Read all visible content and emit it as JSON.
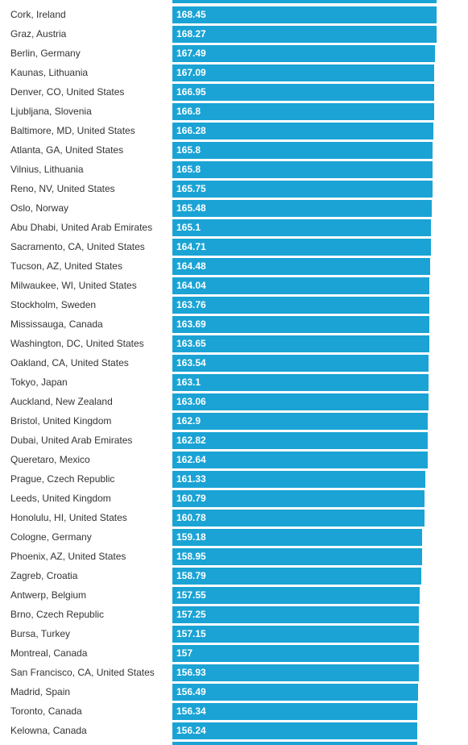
{
  "chart_data": {
    "type": "bar",
    "orientation": "horizontal",
    "title": "",
    "xlabel": "",
    "ylabel": "",
    "bar_color": "#1aa3d4",
    "xlim": [
      0,
      168.45
    ],
    "categories": [
      "Cork, Ireland",
      "Graz, Austria",
      "Berlin, Germany",
      "Kaunas, Lithuania",
      "Denver, CO, United States",
      "Ljubljana, Slovenia",
      "Baltimore, MD, United States",
      "Atlanta, GA, United States",
      "Vilnius, Lithuania",
      "Reno, NV, United States",
      "Oslo, Norway",
      "Abu Dhabi, United Arab Emirates",
      "Sacramento, CA, United States",
      "Tucson, AZ, United States",
      "Milwaukee, WI, United States",
      "Stockholm, Sweden",
      "Mississauga, Canada",
      "Washington, DC, United States",
      "Oakland, CA, United States",
      "Tokyo, Japan",
      "Auckland, New Zealand",
      "Bristol, United Kingdom",
      "Dubai, United Arab Emirates",
      "Queretaro, Mexico",
      "Prague, Czech Republic",
      "Leeds, United Kingdom",
      "Honolulu, HI, United States",
      "Cologne, Germany",
      "Phoenix, AZ, United States",
      "Zagreb, Croatia",
      "Antwerp, Belgium",
      "Brno, Czech Republic",
      "Bursa, Turkey",
      "Montreal, Canada",
      "San Francisco, CA, United States",
      "Madrid, Spain",
      "Toronto, Canada",
      "Kelowna, Canada"
    ],
    "values": [
      168.45,
      168.27,
      167.49,
      167.09,
      166.95,
      166.8,
      166.28,
      165.8,
      165.8,
      165.75,
      165.48,
      165.1,
      164.71,
      164.48,
      164.04,
      163.76,
      163.69,
      163.65,
      163.54,
      163.1,
      163.06,
      162.9,
      162.82,
      162.64,
      161.33,
      160.79,
      160.78,
      159.18,
      158.95,
      158.79,
      157.55,
      157.25,
      157.15,
      157,
      156.93,
      156.49,
      156.34,
      156.24
    ],
    "value_labels": [
      "168.45",
      "168.27",
      "167.49",
      "167.09",
      "166.95",
      "166.8",
      "166.28",
      "165.8",
      "165.8",
      "165.75",
      "165.48",
      "165.1",
      "164.71",
      "164.48",
      "164.04",
      "163.76",
      "163.69",
      "163.65",
      "163.54",
      "163.1",
      "163.06",
      "162.9",
      "162.82",
      "162.64",
      "161.33",
      "160.79",
      "160.78",
      "159.18",
      "158.95",
      "158.79",
      "157.55",
      "157.25",
      "157.15",
      "157",
      "156.93",
      "156.49",
      "156.34",
      "156.24"
    ],
    "partial_bar_above": 168.6,
    "partial_bar_below": 156.2
  }
}
